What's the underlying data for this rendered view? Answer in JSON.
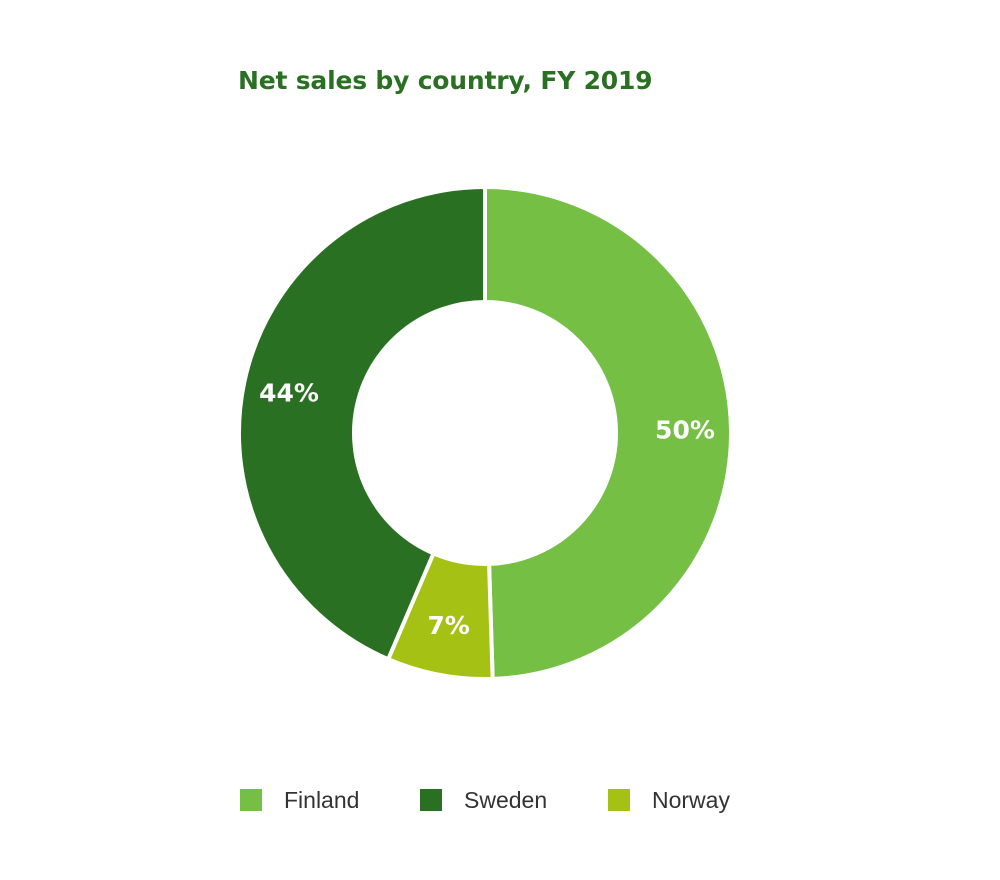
{
  "chart_data": {
    "type": "pie",
    "donut": true,
    "title": "Net sales by country, FY 2019",
    "slices": [
      {
        "name": "Finland",
        "value": 50,
        "label": "50%",
        "color": "#74bf44"
      },
      {
        "name": "Norway",
        "value": 7,
        "label": "7%",
        "color": "#a5c214"
      },
      {
        "name": "Sweden",
        "value": 44,
        "label": "44%",
        "color": "#2a7022"
      }
    ],
    "legend": {
      "placement": "bottom",
      "entries": [
        {
          "name": "Finland",
          "color": "#74bf44"
        },
        {
          "name": "Sweden",
          "color": "#2a7022"
        },
        {
          "name": "Norway",
          "color": "#a5c214"
        }
      ]
    }
  },
  "colors": {
    "title": "#2a7022",
    "label": "#ffffff",
    "separator": "#ffffff"
  }
}
